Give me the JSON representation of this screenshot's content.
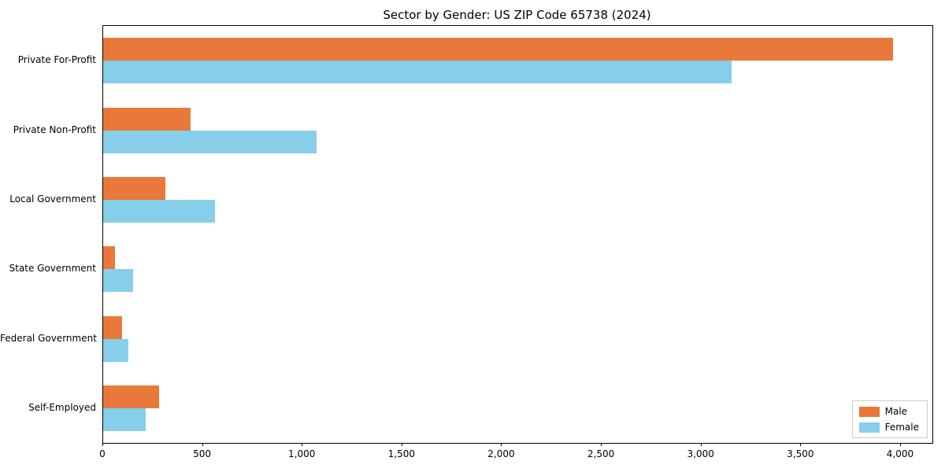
{
  "chart_data": {
    "type": "bar",
    "orientation": "horizontal",
    "title": "Sector by Gender: US ZIP Code 65738 (2024)",
    "categories": [
      "Private For-Profit",
      "Private Non-Profit",
      "Local Government",
      "State Government",
      "Federal Government",
      "Self-Employed"
    ],
    "series": [
      {
        "name": "Male",
        "color": "#e8793b",
        "values": [
          3960,
          440,
          310,
          60,
          95,
          280
        ]
      },
      {
        "name": "Female",
        "color": "#87ceeb",
        "values": [
          3150,
          1070,
          560,
          150,
          125,
          215
        ]
      }
    ],
    "xlabel": "",
    "ylabel": "",
    "xlim": [
      0,
      4158
    ],
    "xticks": [
      0,
      500,
      1000,
      1500,
      2000,
      2500,
      3000,
      3500,
      4000
    ],
    "xtick_labels": [
      "0",
      "500",
      "1,000",
      "1,500",
      "2,000",
      "2,500",
      "3,000",
      "3,500",
      "4,000"
    ],
    "grid": false,
    "legend_position": "lower right"
  }
}
